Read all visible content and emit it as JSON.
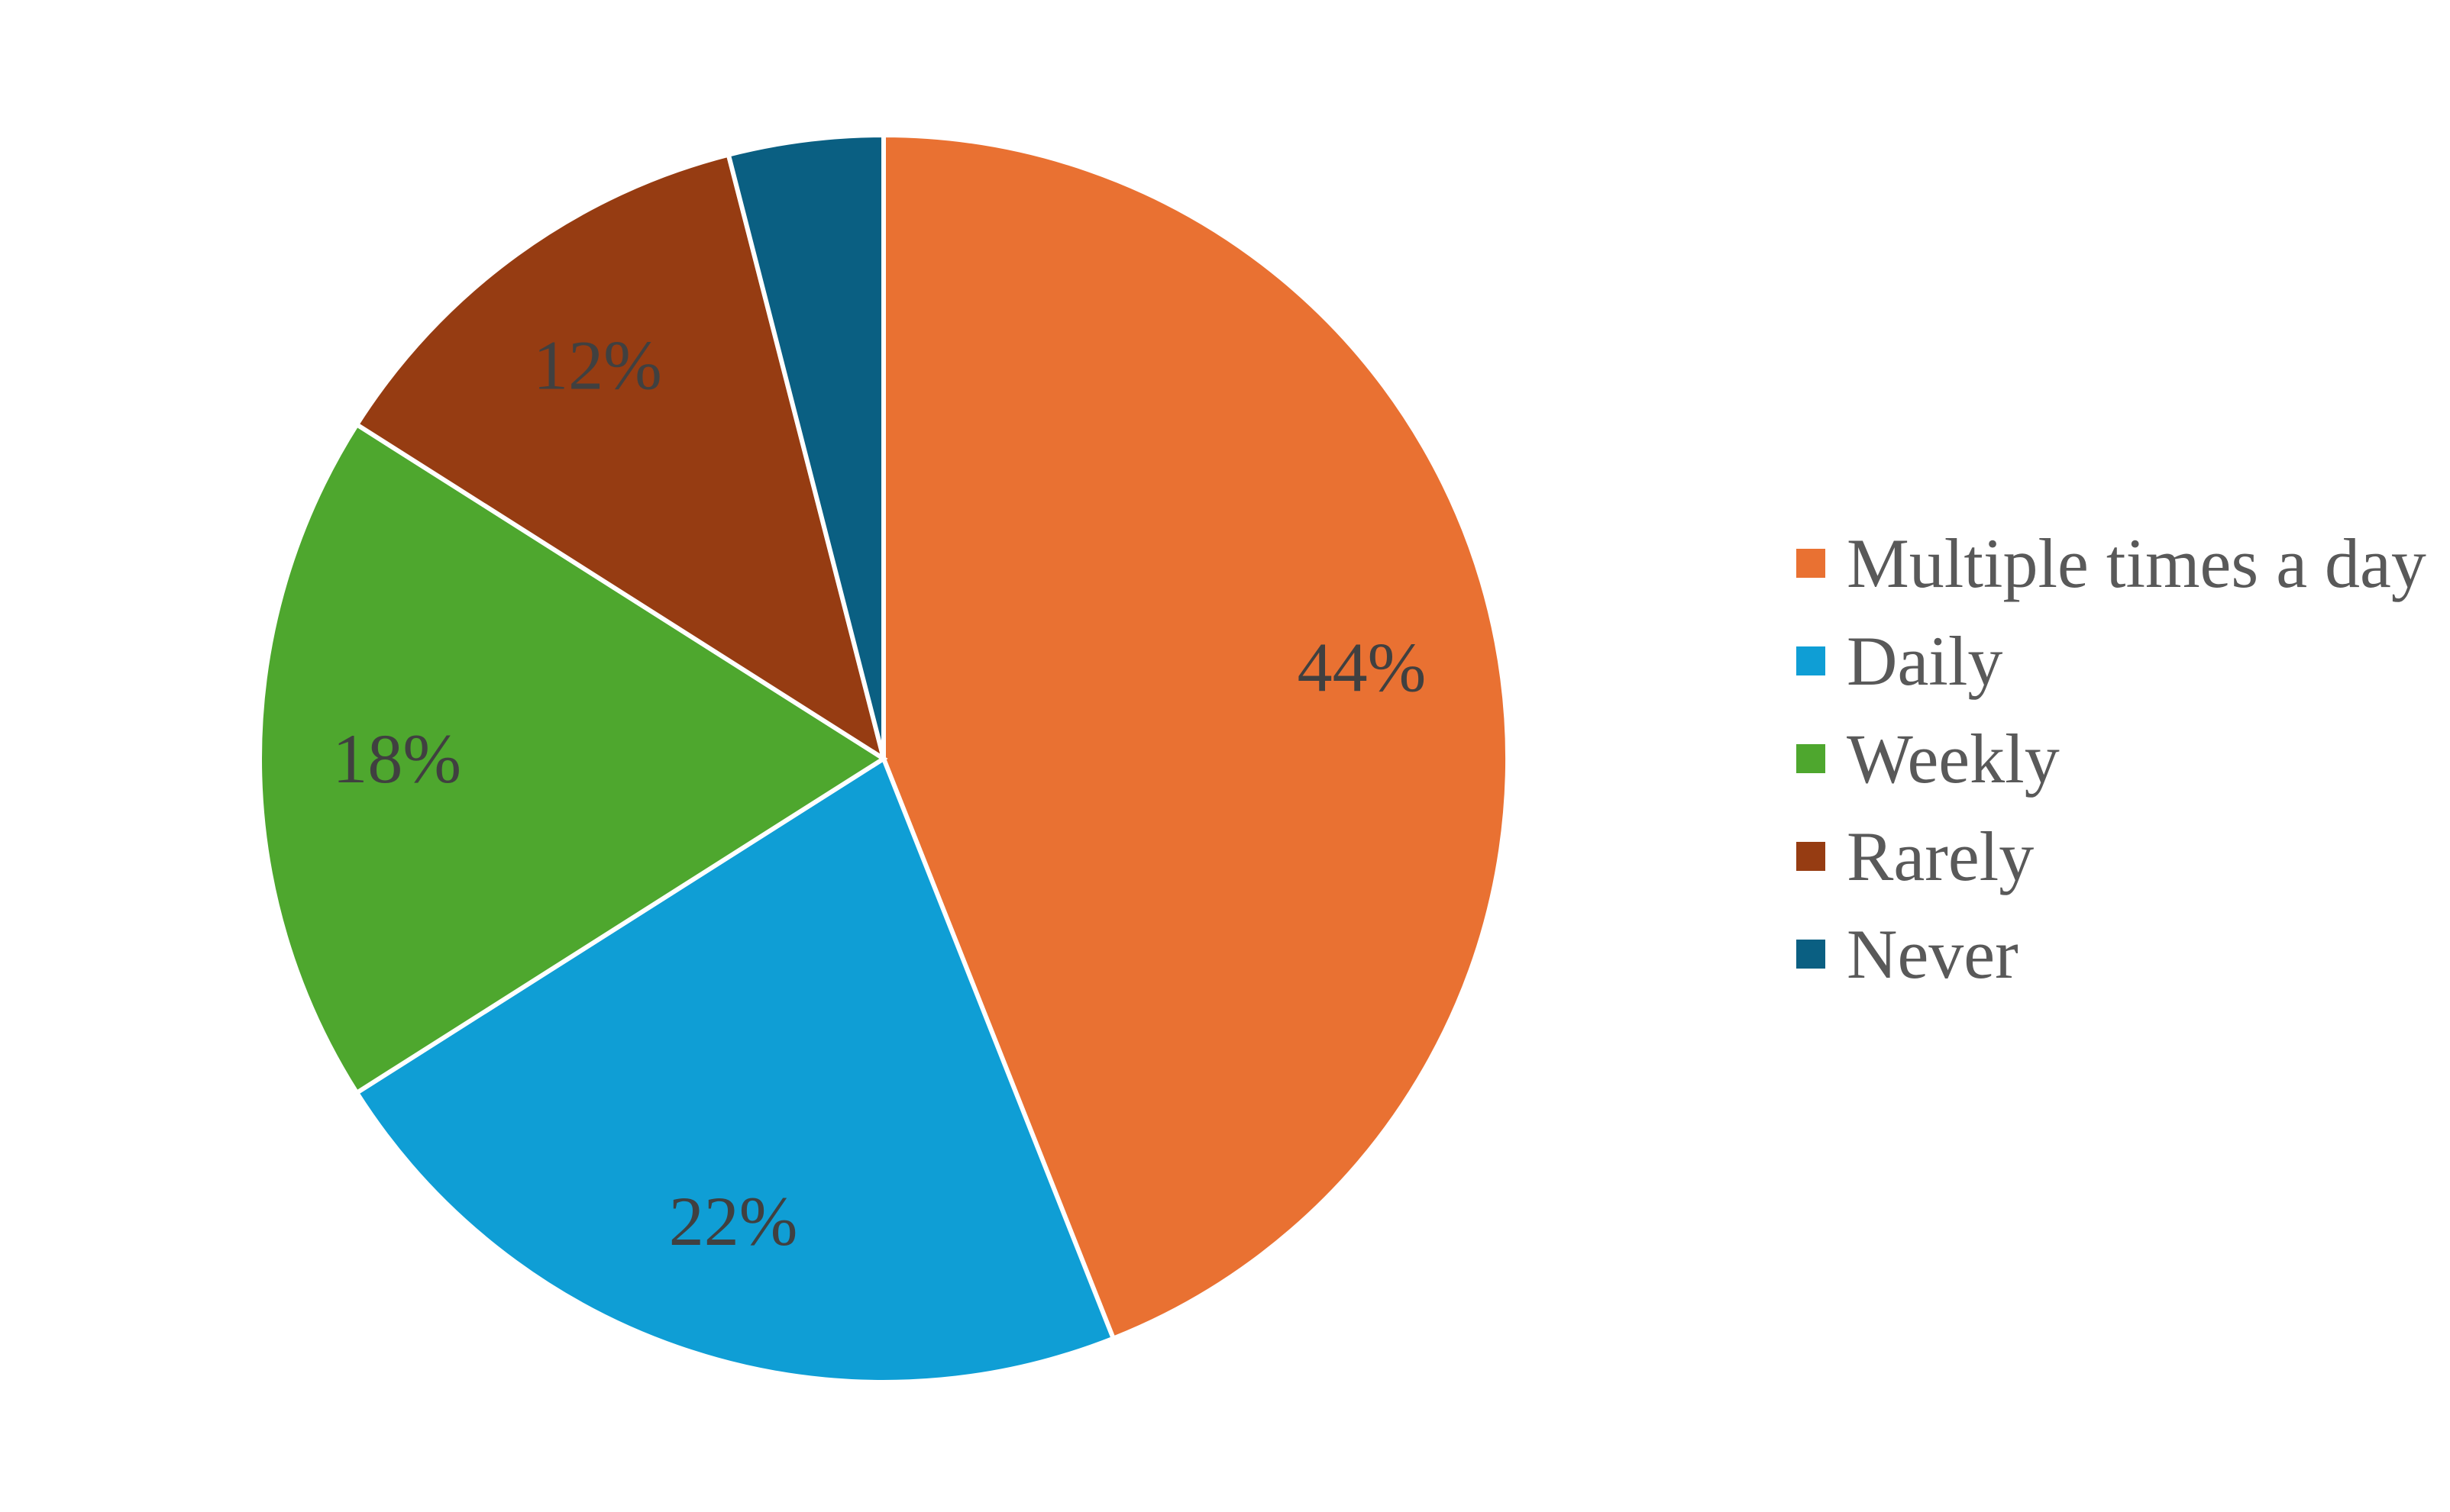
{
  "chart_data": {
    "type": "pie",
    "title": "",
    "categories": [
      "Multiple times a day",
      "Daily",
      "Weekly",
      "Rarely",
      "Never"
    ],
    "values": [
      44,
      22,
      18,
      12,
      4
    ],
    "labels": [
      "44%",
      "22%",
      "18%",
      "12%",
      ""
    ],
    "colors": [
      "#E97132",
      "#0F9ED5",
      "#4EA72E",
      "#963C12",
      "#0A5F82"
    ],
    "start_angle": "12 o'clock",
    "direction": "clockwise",
    "legend": "right"
  }
}
